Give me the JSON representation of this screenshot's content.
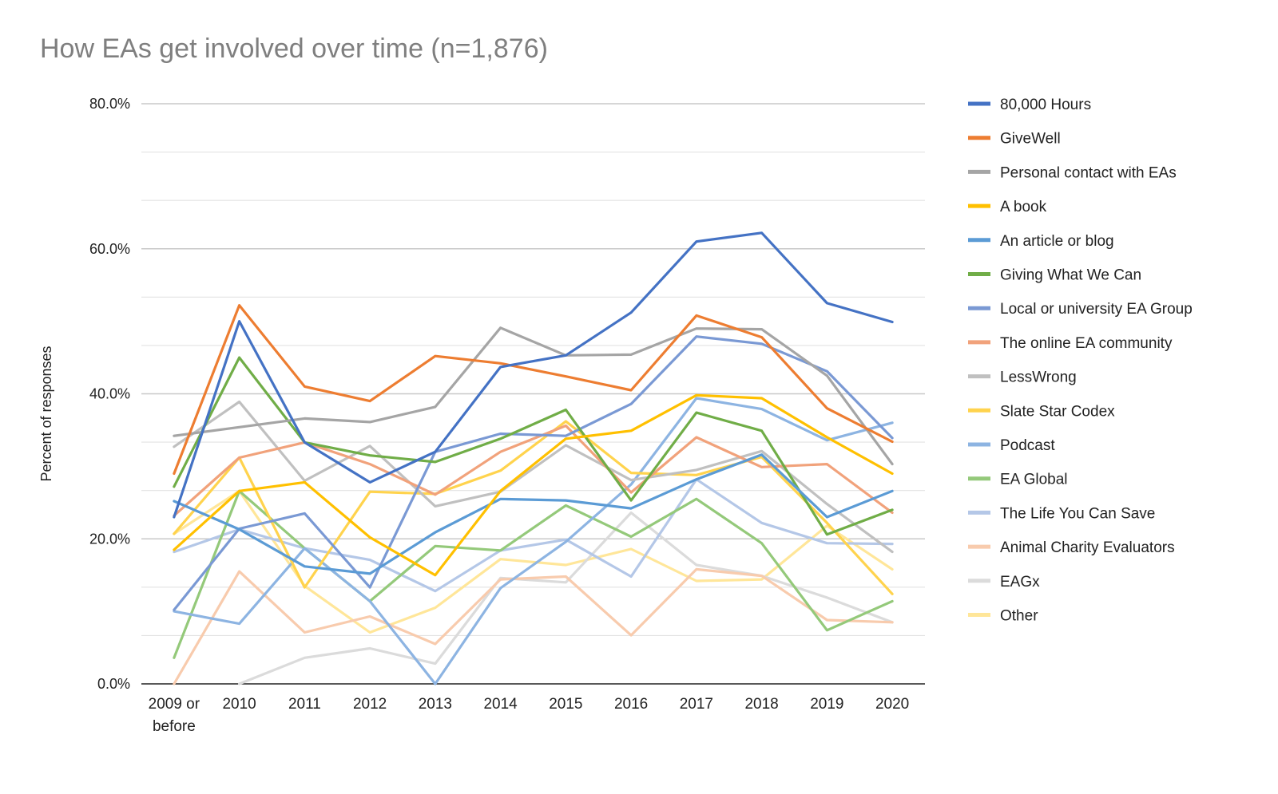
{
  "chart_data": {
    "type": "line",
    "title": "How EAs get involved over time (n=1,876)",
    "xlabel": "",
    "ylabel": "Percent of responses",
    "ylim": [
      0,
      80
    ],
    "y_ticks": [
      "0.0%",
      "20.0%",
      "40.0%",
      "60.0%",
      "80.0%"
    ],
    "grid": true,
    "legend_position": "right",
    "categories": [
      "2009 or before",
      "2010",
      "2011",
      "2012",
      "2013",
      "2014",
      "2015",
      "2016",
      "2017",
      "2018",
      "2019",
      "2020"
    ],
    "series": [
      {
        "name": "80,000 Hours",
        "color": "#4472C4",
        "values": [
          23.0,
          50.0,
          33.3,
          27.8,
          32.0,
          43.7,
          45.3,
          51.2,
          61.0,
          62.2,
          52.5,
          49.9
        ]
      },
      {
        "name": "GiveWell",
        "color": "#ED7D31",
        "values": [
          29.0,
          52.2,
          41.0,
          39.0,
          45.2,
          44.2,
          42.4,
          40.5,
          50.8,
          47.8,
          38.0,
          33.4
        ]
      },
      {
        "name": "Personal contact with EAs",
        "color": "#A5A5A5",
        "values": [
          34.2,
          35.4,
          36.6,
          36.1,
          38.2,
          49.1,
          45.3,
          45.4,
          49.0,
          48.9,
          42.5,
          30.3
        ]
      },
      {
        "name": "A book",
        "color": "#FFC000",
        "values": [
          18.5,
          26.6,
          27.8,
          20.2,
          15.0,
          26.6,
          33.8,
          34.9,
          39.8,
          39.4,
          34.0,
          29.0
        ]
      },
      {
        "name": "An article or blog",
        "color": "#5B9BD5",
        "values": [
          25.2,
          21.3,
          16.2,
          15.2,
          20.9,
          25.5,
          25.3,
          24.2,
          28.2,
          31.6,
          23.0,
          26.6
        ]
      },
      {
        "name": "Giving What We Can",
        "color": "#70AD47",
        "values": [
          27.2,
          45.0,
          33.3,
          31.5,
          30.6,
          33.8,
          37.8,
          25.3,
          37.4,
          34.9,
          20.6,
          24.0
        ]
      },
      {
        "name": "Local or university EA Group",
        "color": "#7A99D4",
        "values": [
          10.2,
          21.4,
          23.5,
          13.3,
          32.0,
          34.5,
          34.2,
          38.6,
          47.9,
          46.9,
          43.1,
          33.9
        ]
      },
      {
        "name": "The online EA community",
        "color": "#F1A27B",
        "values": [
          23.2,
          31.2,
          33.3,
          30.3,
          26.1,
          32.0,
          35.6,
          26.4,
          34.0,
          29.9,
          30.3,
          23.6
        ]
      },
      {
        "name": "LessWrong",
        "color": "#C0C0C0",
        "values": [
          32.7,
          38.9,
          28.0,
          32.8,
          24.5,
          26.5,
          32.9,
          28.1,
          29.5,
          32.1,
          24.8,
          18.2
        ]
      },
      {
        "name": "Slate Star Codex",
        "color": "#FFD34D",
        "values": [
          20.7,
          31.2,
          13.3,
          26.5,
          26.2,
          29.4,
          36.2,
          29.1,
          28.8,
          31.3,
          22.2,
          12.4
        ]
      },
      {
        "name": "Podcast",
        "color": "#8DB4E2",
        "values": [
          10.0,
          8.3,
          18.7,
          11.4,
          0.0,
          13.2,
          19.6,
          27.5,
          39.4,
          37.9,
          33.6,
          36.0
        ]
      },
      {
        "name": "EA Global",
        "color": "#94C97A",
        "values": [
          3.6,
          26.6,
          18.7,
          11.4,
          19.0,
          18.4,
          24.6,
          20.3,
          25.5,
          19.4,
          7.4,
          11.4
        ]
      },
      {
        "name": "The Life You Can Save",
        "color": "#B4C7E7",
        "values": [
          18.2,
          21.3,
          18.7,
          17.1,
          12.8,
          18.4,
          19.9,
          14.8,
          28.2,
          22.2,
          19.4,
          19.3
        ]
      },
      {
        "name": "Animal Charity Evaluators",
        "color": "#F8CBAD",
        "values": [
          0.0,
          15.5,
          7.1,
          9.3,
          5.5,
          14.4,
          14.8,
          6.7,
          15.8,
          14.9,
          8.8,
          8.5
        ]
      },
      {
        "name": "EAGx",
        "color": "#DBDBDB",
        "values": [
          null,
          0.0,
          3.6,
          4.9,
          2.8,
          14.6,
          14.0,
          23.6,
          16.4,
          14.9,
          11.9,
          8.5
        ]
      },
      {
        "name": "Other",
        "color": "#FFE699",
        "values": [
          20.7,
          26.6,
          13.5,
          7.1,
          10.5,
          17.2,
          16.4,
          18.6,
          14.2,
          14.4,
          21.8,
          15.8
        ]
      }
    ]
  }
}
